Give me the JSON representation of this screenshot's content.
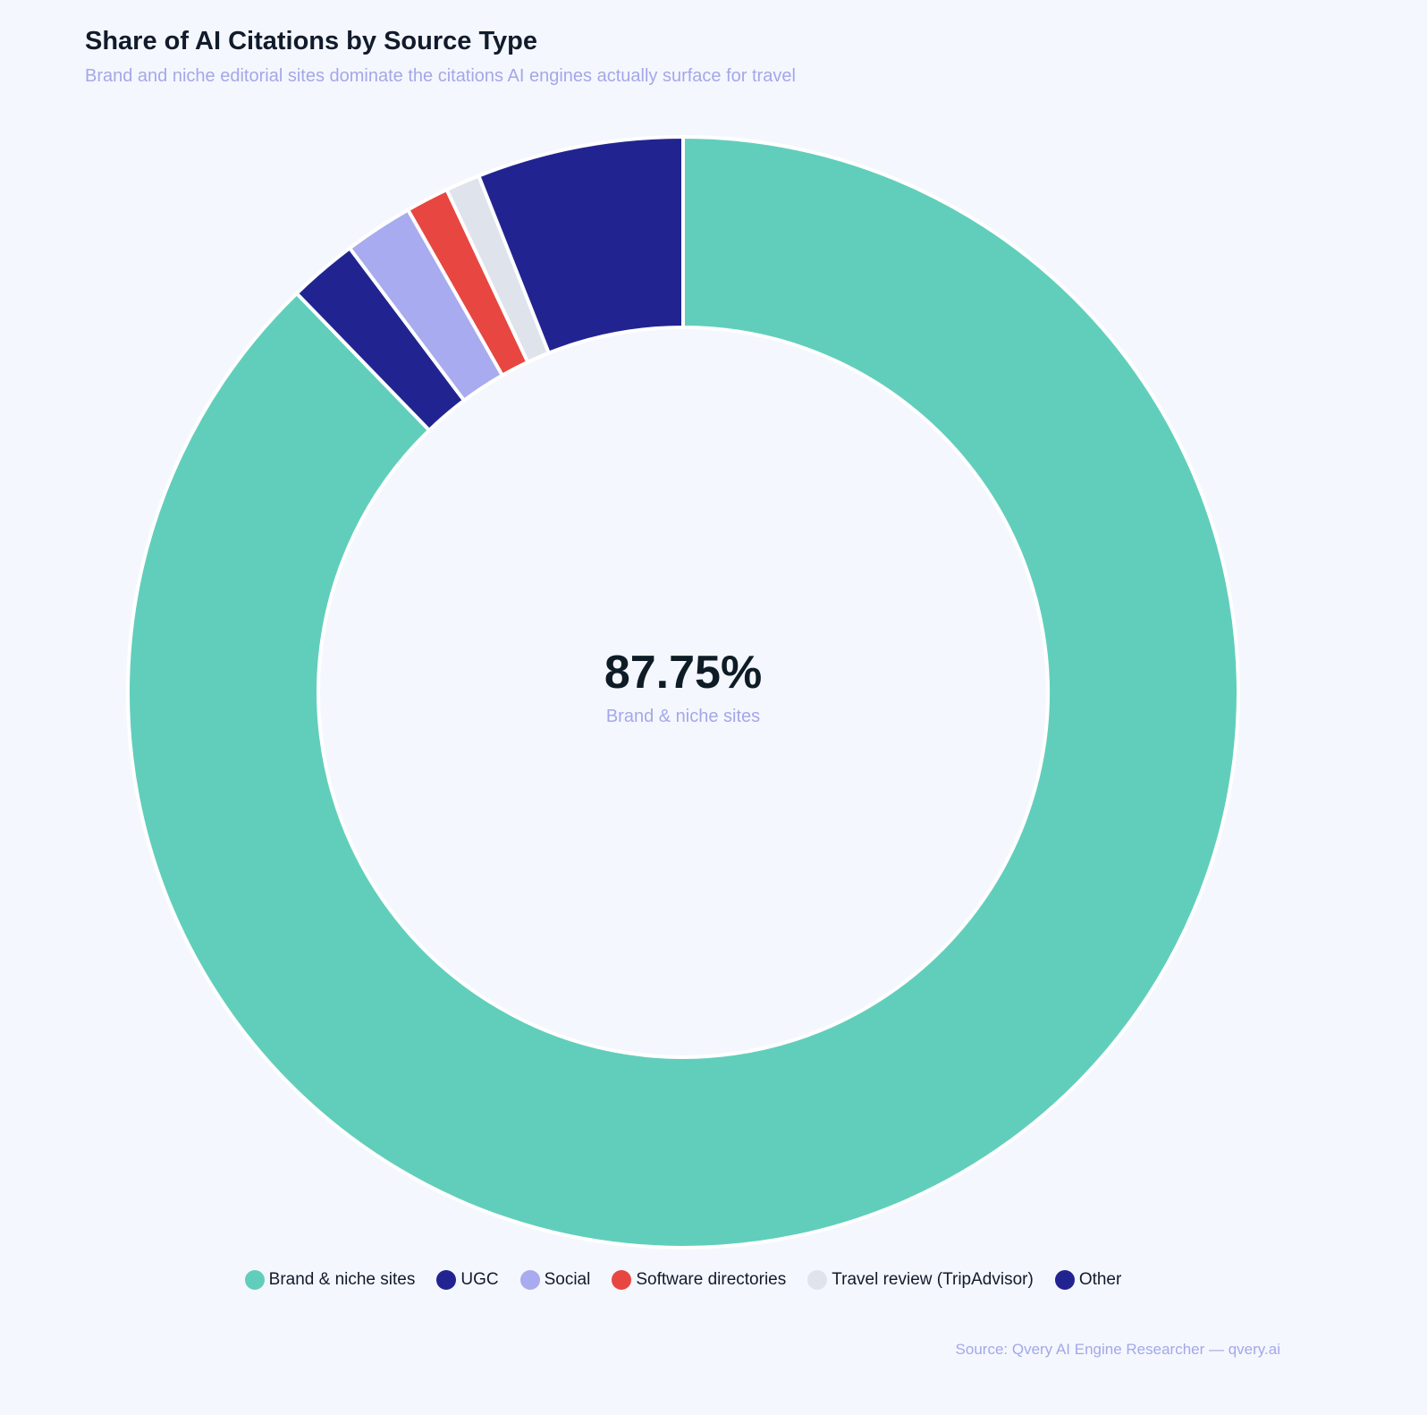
{
  "title": "Share of AI Citations by Source Type",
  "subtitle": "Brand and niche editorial sites dominate the citations AI engines actually surface for travel",
  "center": {
    "value": "87.75%",
    "label": "Brand & niche sites"
  },
  "source": "Source: Qvery AI Engine Researcher — qvery.ai",
  "chart_data": {
    "type": "pie",
    "variant": "donut",
    "title": "Share of AI Citations by Source Type",
    "subtitle": "Brand and niche editorial sites dominate the citations AI engines actually surface for travel",
    "unit": "%",
    "categories": [
      "Brand & niche sites",
      "UGC",
      "Social",
      "Software directories",
      "Travel review (TripAdvisor)",
      "Other"
    ],
    "values": [
      87.75,
      2.0,
      2.0,
      1.25,
      1.0,
      6.0
    ],
    "colors": [
      "#61cebc",
      "#212490",
      "#a8abef",
      "#e84640",
      "#dfe3ec",
      "#212490"
    ],
    "legend_position": "bottom",
    "start_angle": "12 o'clock, clockwise"
  }
}
